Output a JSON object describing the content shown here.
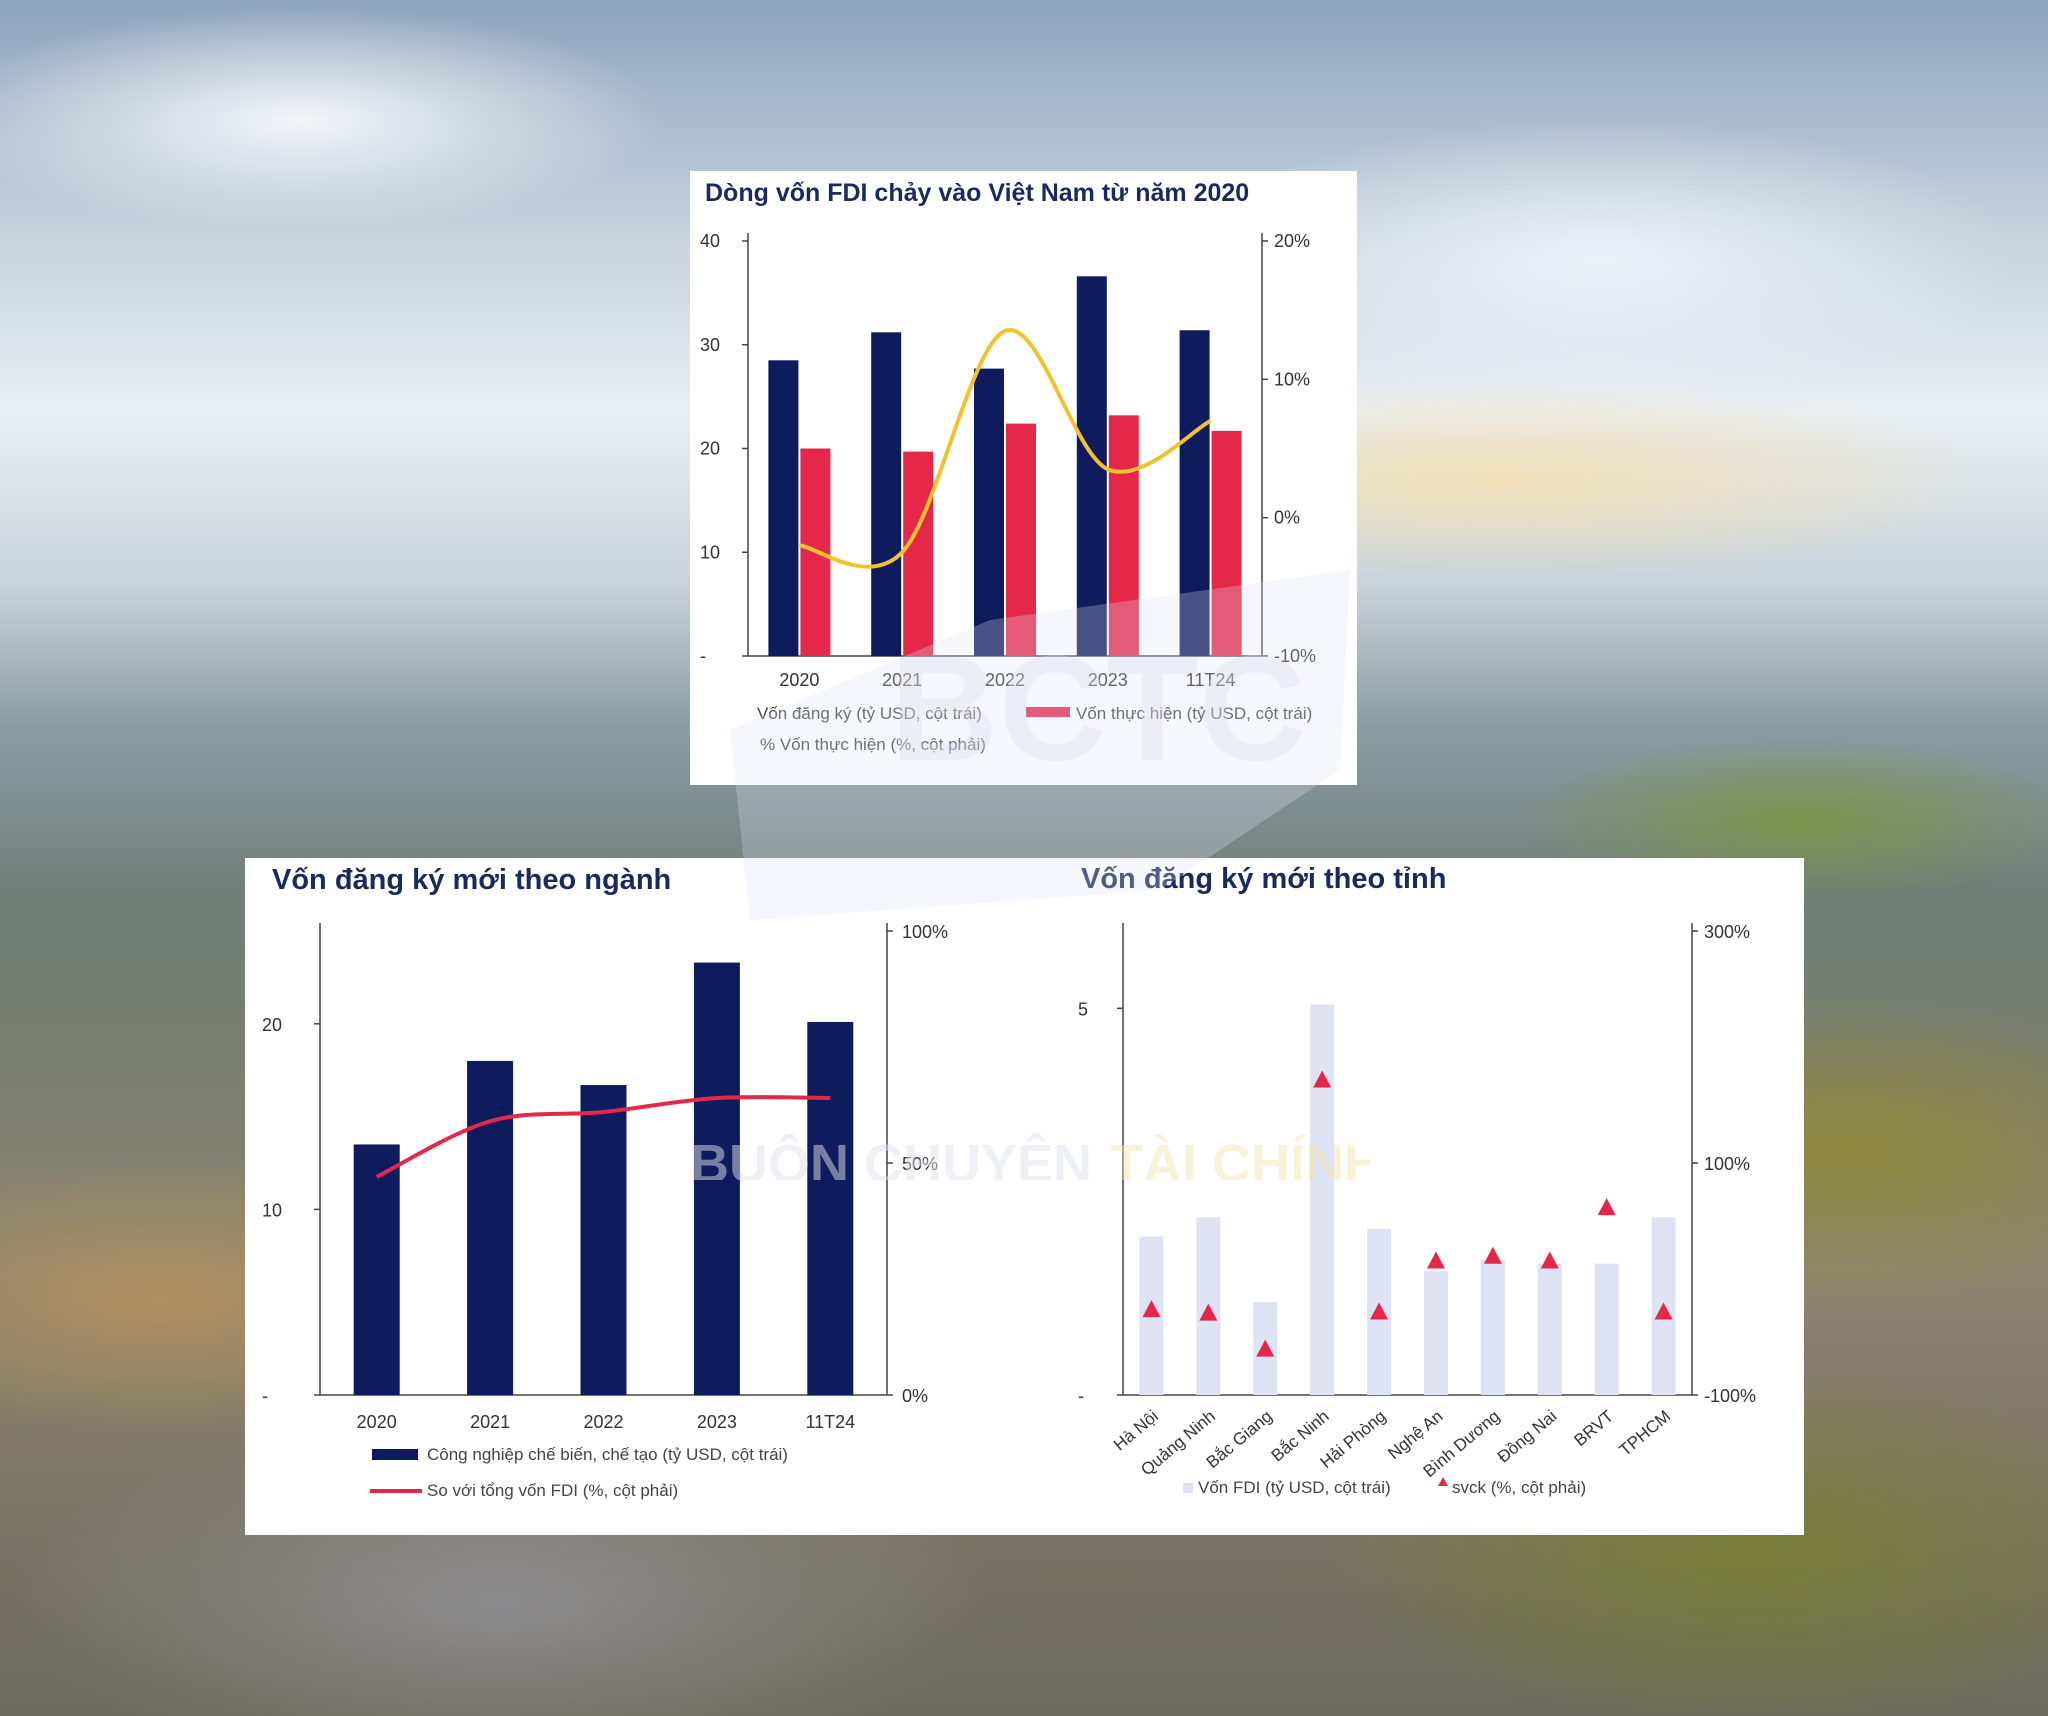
{
  "chart_data": [
    {
      "type": "bar",
      "title": "Dòng vốn FDI chảy vào Việt Nam từ năm 2020",
      "categories": [
        "2020",
        "2021",
        "2022",
        "2023",
        "11T24"
      ],
      "series": [
        {
          "name": "Vốn đăng ký (tỷ USD, cột trái)",
          "values": [
            28.5,
            31.2,
            27.7,
            36.6,
            31.4
          ],
          "color": "#0e1b5c",
          "axis": "left"
        },
        {
          "name": "Vốn thực hiện (tỷ USD, cột trái)",
          "values": [
            20.0,
            19.7,
            22.4,
            23.2,
            21.7
          ],
          "color": "#e5274a",
          "axis": "left"
        },
        {
          "name": "% Vốn thực hiện (%, cột phải)",
          "values": [
            -2.0,
            -2.5,
            13.5,
            3.5,
            7.0
          ],
          "color": "#f2c12e",
          "axis": "right",
          "render": "line"
        }
      ],
      "yticks_left": [
        "-",
        "10",
        "20",
        "30",
        "40"
      ],
      "ylim_left": [
        0,
        40
      ],
      "yticks_right": [
        "-10%",
        "0%",
        "10%",
        "20%"
      ],
      "ylim_right": [
        -10,
        20
      ],
      "legend": "bottom"
    },
    {
      "type": "bar",
      "title": "Vốn đăng ký mới theo ngành",
      "categories": [
        "2020",
        "2021",
        "2022",
        "2023",
        "11T24"
      ],
      "series": [
        {
          "name": "Công nghiệp chế biến, chế tạo (tỷ USD, cột trái)",
          "values": [
            13.5,
            18.0,
            16.7,
            23.3,
            20.1
          ],
          "color": "#0e1b5c",
          "axis": "left"
        },
        {
          "name": "So với tổng vốn FDI (%, cột phải)",
          "values": [
            47,
            59,
            61,
            64,
            64
          ],
          "color": "#e5274a",
          "axis": "right",
          "render": "line"
        }
      ],
      "yticks_left": [
        "-",
        "10",
        "20"
      ],
      "ylim_left": [
        0,
        25
      ],
      "yticks_right": [
        "0%",
        "50%",
        "100%"
      ],
      "ylim_right": [
        0,
        100
      ],
      "legend": "bottom"
    },
    {
      "type": "bar",
      "title": "Vốn đăng ký mới theo tỉnh",
      "categories": [
        "Hà Nội",
        "Quảng Ninh",
        "Bắc Giang",
        "Bắc Ninh",
        "Hải Phòng",
        "Nghệ An",
        "Bình Dương",
        "Đồng Nai",
        "BRVT",
        "TPHCM"
      ],
      "series": [
        {
          "name": "Vốn FDI (tỷ USD, cột trái)",
          "values": [
            2.05,
            2.3,
            1.2,
            5.05,
            2.15,
            1.6,
            1.75,
            1.7,
            1.7,
            2.3
          ],
          "color": "#dfe2f2",
          "axis": "left"
        },
        {
          "name": "svck (%, cột phải)",
          "values": [
            -26,
            -29,
            -60,
            172,
            -28,
            16,
            20,
            16,
            62,
            -28
          ],
          "color": "#e5274a",
          "axis": "right",
          "render": "marker-triangle"
        }
      ],
      "yticks_left": [
        "-",
        "5"
      ],
      "ylim_left": [
        0,
        6
      ],
      "yticks_right": [
        "-100%",
        "100%",
        "300%"
      ],
      "ylim_right": [
        -100,
        300
      ],
      "legend": "bottom"
    }
  ],
  "watermark": {
    "text_left": "BUÔN CHUYỆN",
    "text_right": "TÀI CHÍNH",
    "logo": "BCTC"
  }
}
